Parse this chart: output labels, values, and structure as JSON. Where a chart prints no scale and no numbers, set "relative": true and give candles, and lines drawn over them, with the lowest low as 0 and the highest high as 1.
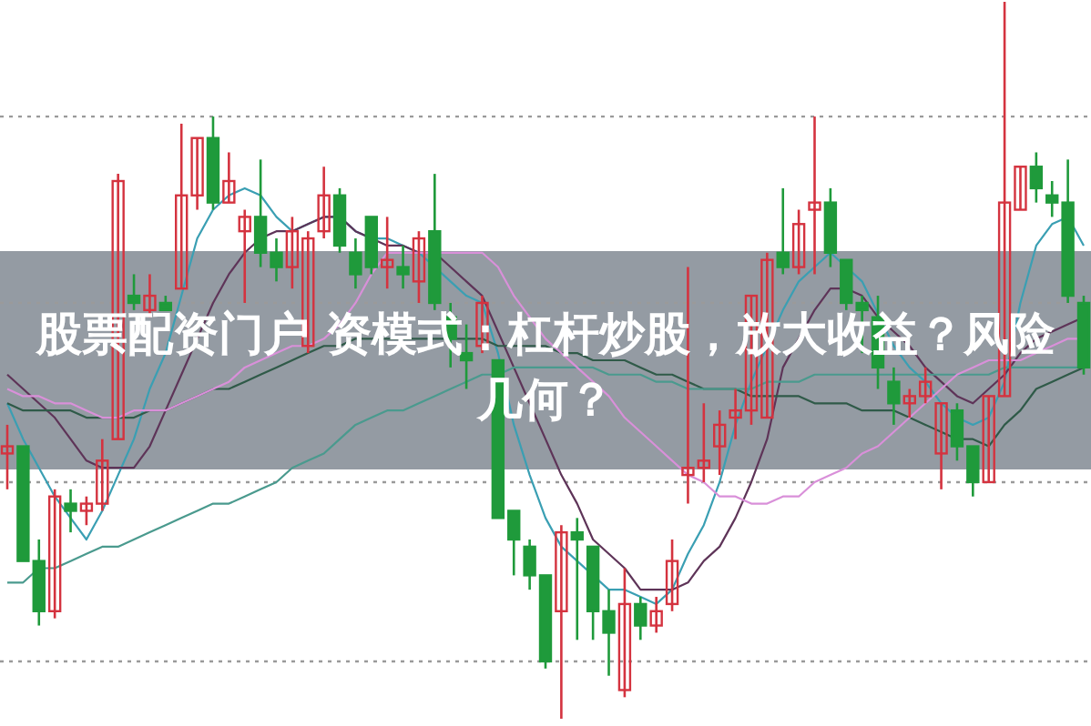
{
  "chart_data": {
    "type": "candlestick",
    "relative": true,
    "title": "股票配资门户 资模式：杠杆炒股，放大收益？风险几何？",
    "categories": [
      null,
      null,
      null,
      null,
      null,
      null,
      null,
      null,
      null,
      null,
      null,
      null,
      null,
      null,
      null,
      null,
      null,
      null,
      null,
      null,
      null,
      null,
      null,
      null,
      null,
      null,
      null,
      null,
      null,
      null,
      null,
      null,
      null,
      null,
      null,
      null,
      null,
      null,
      null,
      null,
      null,
      null,
      null,
      null,
      null,
      null,
      null,
      null,
      null,
      null,
      null,
      null,
      null,
      null,
      null,
      null,
      null,
      null,
      null,
      null,
      null,
      null,
      null,
      null,
      null,
      null,
      null,
      null,
      null
    ],
    "ohlc": [
      [
        0.37,
        0.41,
        0.32,
        0.38
      ],
      [
        0.38,
        0.38,
        0.22,
        0.22
      ],
      [
        0.22,
        0.25,
        0.13,
        0.15
      ],
      [
        0.15,
        0.32,
        0.14,
        0.31
      ],
      [
        0.3,
        0.32,
        0.26,
        0.29
      ],
      [
        0.29,
        0.31,
        0.27,
        0.3
      ],
      [
        0.3,
        0.39,
        0.29,
        0.36
      ],
      [
        0.39,
        0.76,
        0.39,
        0.75
      ],
      [
        0.59,
        0.62,
        0.57,
        0.58
      ],
      [
        0.57,
        0.62,
        0.56,
        0.59
      ],
      [
        0.58,
        0.59,
        0.57,
        0.57
      ],
      [
        0.6,
        0.83,
        0.6,
        0.73
      ],
      [
        0.73,
        0.81,
        0.71,
        0.81
      ],
      [
        0.81,
        0.84,
        0.71,
        0.72
      ],
      [
        0.72,
        0.79,
        0.72,
        0.75
      ],
      [
        0.68,
        0.71,
        0.58,
        0.7
      ],
      [
        0.7,
        0.78,
        0.63,
        0.65
      ],
      [
        0.65,
        0.67,
        0.61,
        0.63
      ],
      [
        0.63,
        0.7,
        0.6,
        0.68
      ],
      [
        0.52,
        0.68,
        0.51,
        0.67
      ],
      [
        0.68,
        0.77,
        0.67,
        0.73
      ],
      [
        0.73,
        0.74,
        0.65,
        0.66
      ],
      [
        0.65,
        0.67,
        0.6,
        0.62
      ],
      [
        0.7,
        0.7,
        0.62,
        0.63
      ],
      [
        0.63,
        0.7,
        0.6,
        0.64
      ],
      [
        0.63,
        0.66,
        0.6,
        0.62
      ],
      [
        0.61,
        0.68,
        0.58,
        0.67
      ],
      [
        0.68,
        0.76,
        0.57,
        0.58
      ],
      [
        0.56,
        0.58,
        0.49,
        0.53
      ],
      [
        0.51,
        0.55,
        0.46,
        0.5
      ],
      [
        0.52,
        0.59,
        0.51,
        0.58
      ],
      [
        0.5,
        0.5,
        0.28,
        0.28
      ],
      [
        0.29,
        0.29,
        0.2,
        0.25
      ],
      [
        0.24,
        0.25,
        0.18,
        0.2
      ],
      [
        0.2,
        0.2,
        0.07,
        0.08
      ],
      [
        0.15,
        0.27,
        0,
        0.26
      ],
      [
        0.26,
        0.28,
        0.11,
        0.25
      ],
      [
        0.24,
        0.24,
        0.11,
        0.15
      ],
      [
        0.15,
        0.18,
        0.06,
        0.12
      ],
      [
        0.04,
        0.21,
        0.03,
        0.16
      ],
      [
        0.16,
        0.17,
        0.11,
        0.13
      ],
      [
        0.13,
        0.17,
        0.12,
        0.15
      ],
      [
        0.16,
        0.25,
        0.15,
        0.22
      ],
      [
        0.34,
        0.63,
        0.3,
        0.35
      ],
      [
        0.35,
        0.44,
        0.33,
        0.36
      ],
      [
        0.38,
        0.43,
        0.34,
        0.41
      ],
      [
        0.42,
        0.46,
        0.39,
        0.43
      ],
      [
        0.43,
        0.59,
        0.41,
        0.59
      ],
      [
        0.42,
        0.65,
        0.42,
        0.64
      ],
      [
        0.65,
        0.74,
        0.62,
        0.63
      ],
      [
        0.63,
        0.71,
        0.62,
        0.69
      ],
      [
        0.71,
        0.84,
        0.62,
        0.72
      ],
      [
        0.72,
        0.74,
        0.63,
        0.65
      ],
      [
        0.64,
        0.64,
        0.57,
        0.58
      ],
      [
        0.58,
        0.59,
        0.51,
        0.57
      ],
      [
        0.56,
        0.59,
        0.46,
        0.49
      ],
      [
        0.47,
        0.49,
        0.41,
        0.44
      ],
      [
        0.44,
        0.46,
        0.42,
        0.45
      ],
      [
        0.45,
        0.49,
        0.44,
        0.47
      ],
      [
        0.37,
        0.44,
        0.32,
        0.44
      ],
      [
        0.43,
        0.44,
        0.36,
        0.38
      ],
      [
        0.38,
        0.38,
        0.31,
        0.33
      ],
      [
        0.33,
        0.45,
        0.33,
        0.45
      ],
      [
        0.45,
        1,
        0.45,
        0.72
      ],
      [
        0.71,
        0.77,
        0.71,
        0.77
      ],
      [
        0.77,
        0.79,
        0.72,
        0.74
      ],
      [
        0.73,
        0.75,
        0.7,
        0.72
      ],
      [
        0.72,
        0.78,
        0.58,
        0.59
      ],
      [
        0.58,
        0.59,
        0.48,
        0.49
      ]
    ],
    "colors": [
      "#d4333f",
      "#1f9a3b",
      "#1f9a3b",
      "#d4333f",
      "#1f9a3b",
      "#d4333f",
      "#d4333f",
      "#d4333f",
      "#1f9a3b",
      "#d4333f",
      "#1f9a3b",
      "#d4333f",
      "#d4333f",
      "#1f9a3b",
      "#d4333f",
      "#d4333f",
      "#1f9a3b",
      "#1f9a3b",
      "#d4333f",
      "#d4333f",
      "#d4333f",
      "#1f9a3b",
      "#1f9a3b",
      "#1f9a3b",
      "#d4333f",
      "#1f9a3b",
      "#d4333f",
      "#1f9a3b",
      "#1f9a3b",
      "#1f9a3b",
      "#d4333f",
      "#1f9a3b",
      "#1f9a3b",
      "#1f9a3b",
      "#1f9a3b",
      "#d4333f",
      "#1f9a3b",
      "#1f9a3b",
      "#1f9a3b",
      "#d4333f",
      "#1f9a3b",
      "#d4333f",
      "#d4333f",
      "#d4333f",
      "#d4333f",
      "#d4333f",
      "#d4333f",
      "#d4333f",
      "#d4333f",
      "#1f9a3b",
      "#d4333f",
      "#d4333f",
      "#1f9a3b",
      "#1f9a3b",
      "#1f9a3b",
      "#1f9a3b",
      "#1f9a3b",
      "#d4333f",
      "#d4333f",
      "#d4333f",
      "#1f9a3b",
      "#1f9a3b",
      "#d4333f",
      "#d4333f",
      "#d4333f",
      "#1f9a3b",
      "#1f9a3b",
      "#1f9a3b",
      "#1f9a3b"
    ],
    "series": [
      {
        "type": "line",
        "color": "#3a9fb3",
        "values": [
          0.44,
          0.39,
          0.35,
          0.31,
          0.28,
          0.25,
          0.29,
          0.34,
          0.39,
          0.46,
          0.51,
          0.59,
          0.67,
          0.71,
          0.73,
          0.74,
          0.73,
          0.7,
          0.68,
          0.69,
          0.7,
          0.7,
          0.68,
          0.67,
          0.67,
          0.66,
          0.65,
          0.63,
          0.61,
          0.59,
          0.58,
          0.51,
          0.41,
          0.34,
          0.28,
          0.24,
          0.22,
          0.2,
          0.18,
          0.18,
          0.17,
          0.16,
          0.18,
          0.23,
          0.27,
          0.33,
          0.41,
          0.47,
          0.52,
          0.57,
          0.61,
          0.63,
          0.65,
          0.63,
          0.61,
          null,
          0.52,
          0.49,
          0.47,
          0.44,
          0.42,
          0.41,
          0.42,
          0.47,
          0.58,
          0.66,
          0.69,
          0.7,
          0.66
        ]
      },
      {
        "type": "line",
        "color": "#5e3458",
        "values": [
          0.48,
          0.46,
          0.44,
          0.42,
          0.39,
          0.36,
          0.35,
          0.35,
          0.35,
          0.38,
          0.43,
          0.48,
          0.53,
          0.58,
          0.62,
          0.65,
          0.67,
          0.68,
          0.68,
          0.69,
          0.7,
          0.7,
          0.68,
          0.67,
          0.66,
          0.66,
          0.65,
          0.65,
          0.63,
          0.61,
          0.59,
          0.54,
          0.49,
          0.44,
          0.39,
          0.34,
          0.3,
          0.25,
          0.23,
          0.21,
          0.18,
          0.18,
          0.18,
          0.19,
          0.22,
          0.24,
          0.28,
          0.33,
          0.39,
          0.49,
          0.53,
          0.57,
          0.6,
          0.6,
          0.59,
          0.56,
          0.54,
          0.52,
          0.49,
          0.47,
          0.45,
          0.44,
          0.46,
          0.48,
          0.51,
          0.53,
          0.54,
          0.55,
          0.56
        ]
      },
      {
        "type": "line",
        "color": "#d990d9",
        "values": [
          0.46,
          0.45,
          0.45,
          0.44,
          0.44,
          0.43,
          0.42,
          0.42,
          0.43,
          0.43,
          0.43,
          0.44,
          0.45,
          0.46,
          0.47,
          0.49,
          0.5,
          0.51,
          0.52,
          0.52,
          0.53,
          0.55,
          0.58,
          0.62,
          0.65,
          0.65,
          0.65,
          null,
          0.65,
          0.65,
          0.65,
          0.63,
          0.59,
          0.56,
          0.53,
          0.51,
          0.49,
          0.47,
          0.45,
          0.42,
          0.4,
          0.38,
          0.36,
          0.34,
          0.33,
          0.31,
          0.31,
          0.3,
          0.3,
          0.31,
          0.31,
          0.33,
          0.34,
          0.35,
          0.37,
          0.38,
          0.4,
          0.42,
          0.44,
          0.46,
          0.48,
          0.49,
          0.5,
          0.5,
          0.5,
          0.51,
          0.52,
          0.53,
          0.53
        ]
      },
      {
        "type": "line",
        "color": "#2f5a48",
        "values": [
          0.44,
          0.43,
          0.43,
          0.43,
          0.43,
          0.42,
          0.42,
          0.42,
          0.42,
          0.43,
          0.43,
          0.44,
          0.45,
          0.46,
          0.46,
          0.47,
          0.48,
          0.49,
          0.5,
          0.51,
          0.52,
          0.52,
          0.53,
          0.53,
          0.53,
          0.53,
          0.53,
          0.53,
          0.53,
          0.53,
          0.53,
          0.52,
          0.52,
          0.52,
          0.52,
          0.51,
          0.51,
          0.5,
          0.5,
          0.5,
          0.49,
          0.48,
          0.48,
          0.47,
          0.46,
          0.46,
          0.46,
          0.45,
          0.45,
          0.45,
          0.45,
          0.44,
          0.44,
          0.44,
          0.43,
          0.43,
          0.43,
          0.42,
          0.41,
          0.4,
          0.39,
          0.39,
          0.38,
          0.41,
          0.43,
          0.46,
          0.47,
          0.48,
          0.49
        ]
      },
      {
        "type": "line",
        "color": "#4a9a8e",
        "values": [
          0.19,
          0.19,
          0.21,
          0.21,
          0.22,
          0.23,
          0.24,
          0.24,
          0.25,
          0.26,
          0.27,
          0.28,
          0.29,
          0.3,
          0.3,
          0.31,
          0.32,
          0.33,
          0.35,
          0.36,
          0.37,
          0.39,
          0.41,
          0.42,
          0.43,
          0.43,
          0.44,
          0.45,
          0.46,
          0.47,
          0.48,
          0.48,
          0.49,
          0.49,
          0.49,
          0.49,
          0.49,
          0.49,
          0.48,
          0.48,
          0.48,
          0.47,
          0.47,
          0.46,
          0.46,
          0.46,
          0.46,
          0.46,
          0.47,
          0.47,
          0.47,
          0.48,
          0.48,
          0.48,
          0.48,
          0.48,
          0.48,
          0.48,
          0.48,
          0.48,
          0.48,
          0.48,
          0.48,
          0.49,
          0.49,
          0.49,
          0.49,
          0.49,
          0.49
        ]
      }
    ],
    "ref_lines": [
      {
        "axis": "y",
        "value": 0.84,
        "color": "#9a9a9a",
        "line_style": "dotted"
      },
      {
        "axis": "y",
        "value": 0.58,
        "color": "#9a9a9a",
        "line_style": "dotted"
      },
      {
        "axis": "y",
        "value": 0.33,
        "color": "#9a9a9a",
        "line_style": "dotted"
      },
      {
        "axis": "y",
        "value": 0.08,
        "color": "#9a9a9a",
        "line_style": "dotted"
      }
    ]
  }
}
